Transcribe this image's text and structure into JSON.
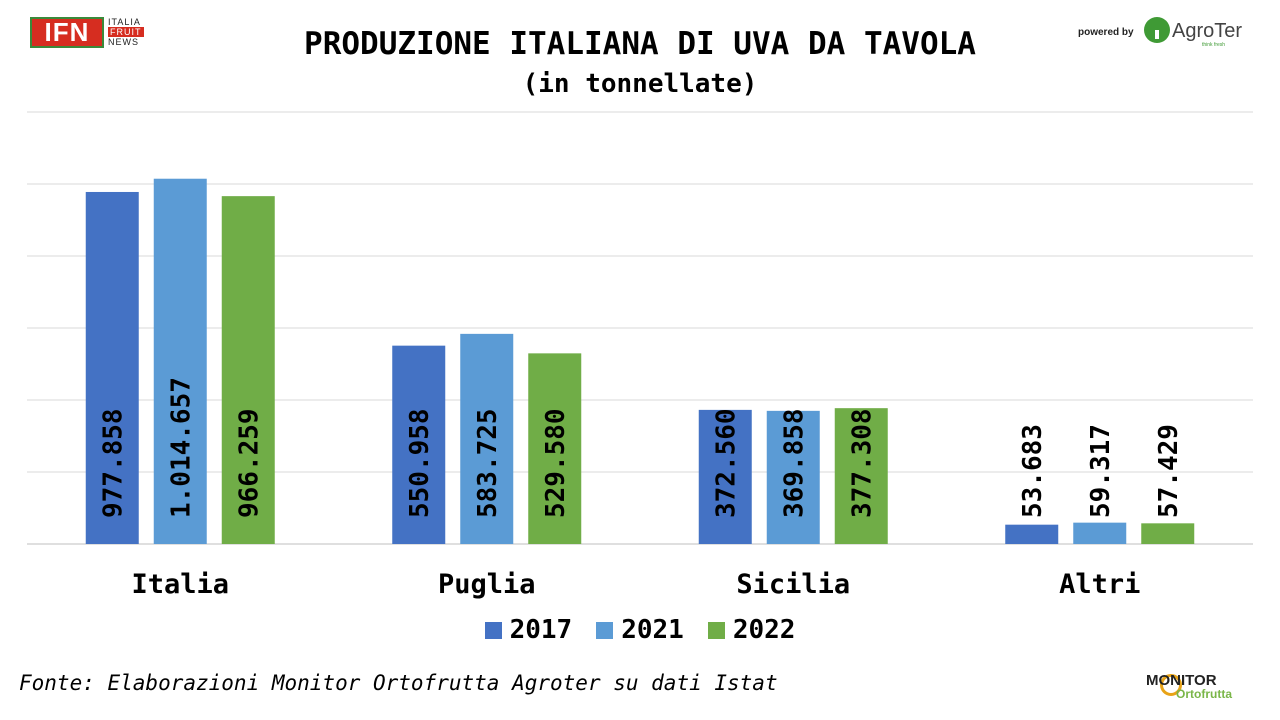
{
  "brand": {
    "ifn_logo_text": "IFN",
    "ifn_logo_lines": [
      "ITALIA",
      "FRUIT",
      "NEWS"
    ],
    "powered_by": "powered by",
    "agroter_name": "AgroTer",
    "agroter_tagline": "think fresh",
    "monitor_logo": "MONITOR",
    "monitor_sub": "Ortofrutta"
  },
  "source_note": "Fonte: Elaborazioni Monitor Ortofrutta Agroter su dati Istat",
  "colors": {
    "2017": "#4472c4",
    "2021": "#5b9bd5",
    "2022": "#70ad47",
    "grid": "#d9d9d9"
  },
  "chart_data": {
    "type": "bar",
    "title": "PRODUZIONE ITALIANA DI UVA DA TAVOLA",
    "subtitle": "(in tonnellate)",
    "categories": [
      "Italia",
      "Puglia",
      "Sicilia",
      "Altri"
    ],
    "series": [
      {
        "name": "2017",
        "values": [
          977858,
          550958,
          372560,
          53683
        ],
        "labels": [
          "977.858",
          "550.958",
          "372.560",
          "53.683"
        ]
      },
      {
        "name": "2021",
        "values": [
          1014657,
          583725,
          369858,
          59317
        ],
        "labels": [
          "1.014.657",
          "583.725",
          "369.858",
          "59.317"
        ]
      },
      {
        "name": "2022",
        "values": [
          966259,
          529580,
          377308,
          57429
        ],
        "labels": [
          "966.259",
          "529.580",
          "377.308",
          "57.429"
        ]
      }
    ],
    "ylim": [
      0,
      1200000
    ],
    "y_gridlines": [
      0,
      200000,
      400000,
      600000,
      800000,
      1000000,
      1200000
    ],
    "ytick_labels_visible": false,
    "grid": true,
    "legend": "bottom",
    "data_labels": "inside-bottom, rotated vertical"
  }
}
